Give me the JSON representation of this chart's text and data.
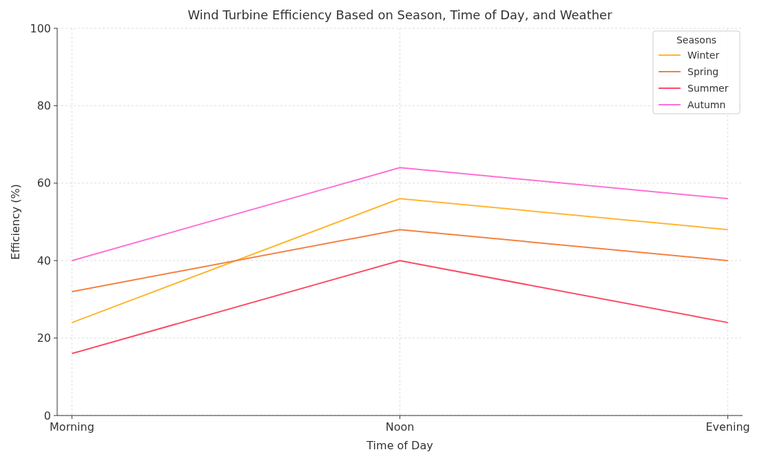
{
  "chart_data": {
    "type": "line",
    "title": "Wind Turbine Efficiency Based on Season, Time of Day, and Weather",
    "xlabel": "Time of Day",
    "ylabel": "Efficiency (%)",
    "legend_title": "Seasons",
    "categories": [
      "Morning",
      "Noon",
      "Evening"
    ],
    "series": [
      {
        "name": "Winter",
        "color": "#ffb62e",
        "values": [
          24,
          56,
          48
        ]
      },
      {
        "name": "Spring",
        "color": "#f5803f",
        "values": [
          32,
          48,
          40
        ]
      },
      {
        "name": "Summer",
        "color": "#fb4a66",
        "values": [
          16,
          40,
          24
        ]
      },
      {
        "name": "Autumn",
        "color": "#ff6fd6",
        "values": [
          40,
          64,
          56
        ]
      }
    ],
    "ylim": [
      0,
      100
    ],
    "yticks": [
      0,
      20,
      40,
      60,
      80,
      100
    ],
    "grid": true,
    "legend": "top right",
    "line_style": "solid"
  }
}
